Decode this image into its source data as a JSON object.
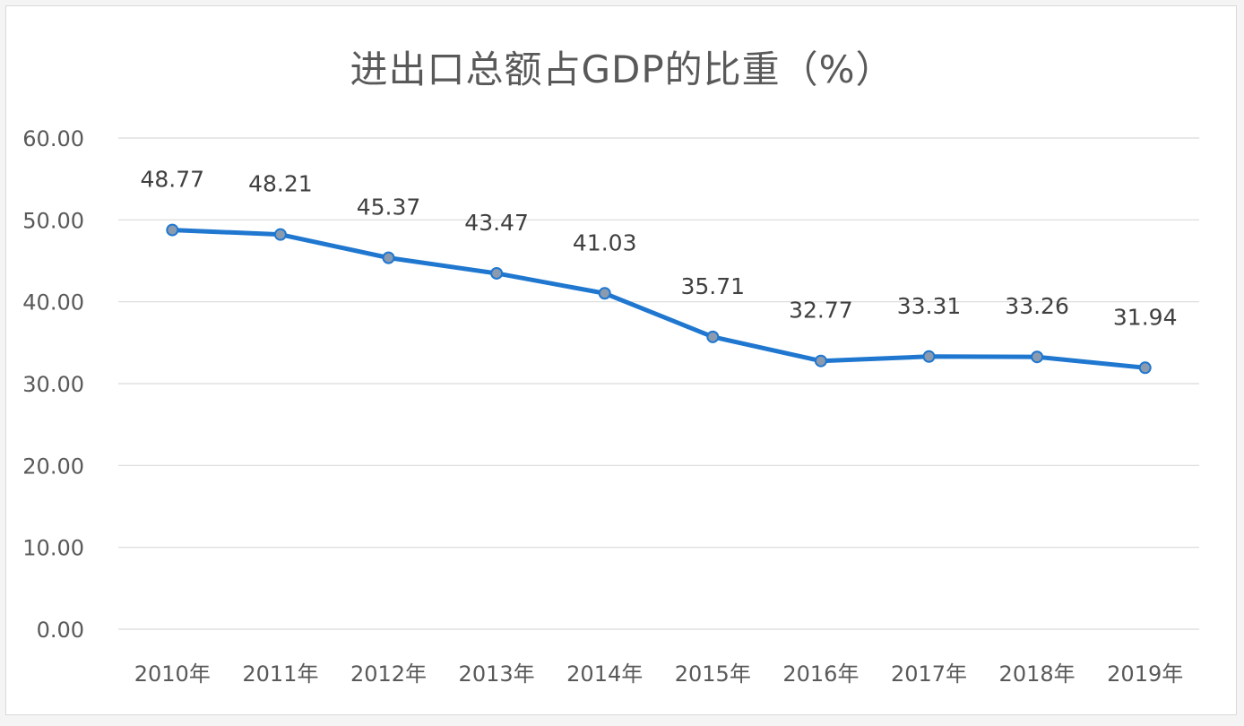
{
  "chart_data": {
    "type": "line",
    "title": "进出口总额占GDP的比重（%）",
    "categories": [
      "2010年",
      "2011年",
      "2012年",
      "2013年",
      "2014年",
      "2015年",
      "2016年",
      "2017年",
      "2018年",
      "2019年"
    ],
    "series": [
      {
        "values": [
          48.77,
          48.21,
          45.37,
          43.47,
          41.03,
          35.71,
          32.77,
          33.31,
          33.26,
          31.94
        ],
        "color": "#1f77d0",
        "marker_color": "#8a9bb0"
      }
    ],
    "data_labels": [
      "48.77",
      "48.21",
      "45.37",
      "43.47",
      "41.03",
      "35.71",
      "32.77",
      "33.31",
      "33.26",
      "31.94"
    ],
    "yticks": [
      "0.00",
      "10.00",
      "20.00",
      "30.00",
      "40.00",
      "50.00",
      "60.00"
    ],
    "ylim": [
      0,
      60
    ],
    "grid": true,
    "legend": "none",
    "gridline_color": "#d9d9d9",
    "text_color": "#595959"
  }
}
